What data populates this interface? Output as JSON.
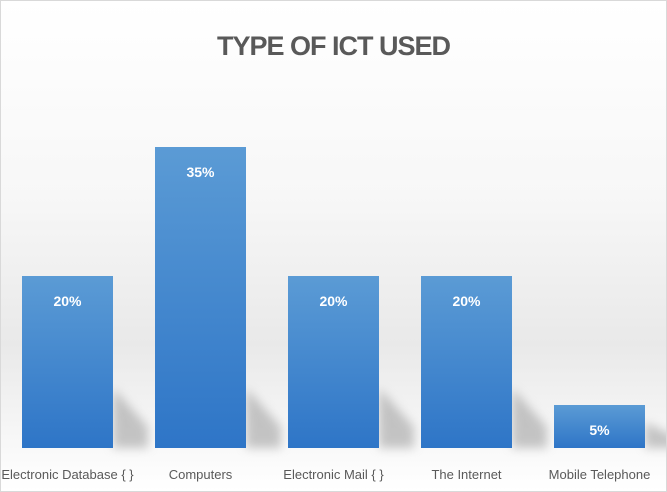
{
  "chart_data": {
    "type": "bar",
    "title": "TYPE OF ICT USED",
    "categories": [
      "Electronic Database { }",
      "Computers",
      "Electronic Mail { }",
      "The Internet",
      "Mobile Telephone"
    ],
    "values": [
      20,
      35,
      20,
      20,
      5
    ],
    "value_labels": [
      "20%",
      "35%",
      "20%",
      "20%",
      "5%"
    ],
    "xlabel": "",
    "ylabel": "",
    "ylim": [
      0,
      40
    ],
    "grid": false,
    "legend": "none",
    "colors": {
      "bar_top": "#5b9bd5",
      "bar_bottom": "#2e75c7",
      "label": "#ffffff",
      "text": "#595959"
    }
  }
}
